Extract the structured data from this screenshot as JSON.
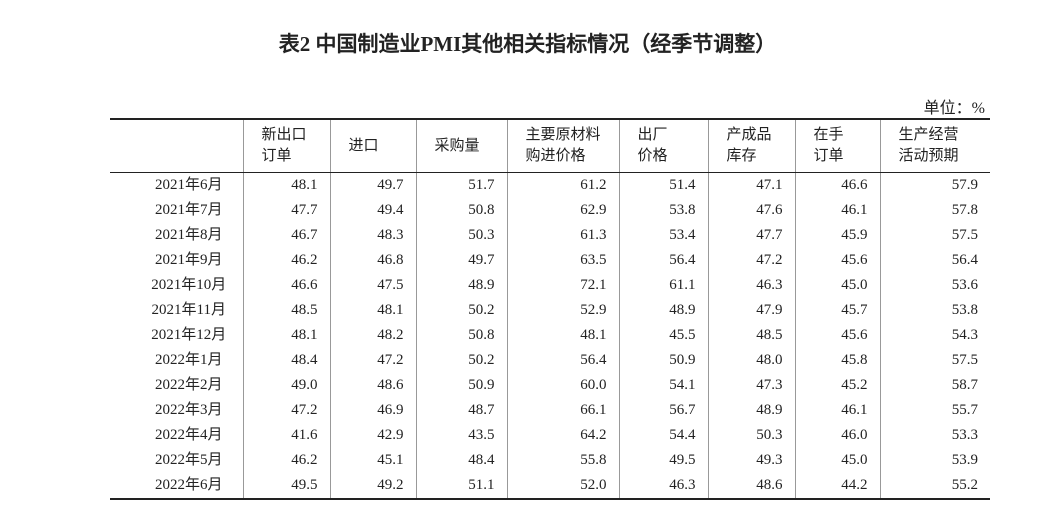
{
  "title": "表2 中国制造业PMI其他相关指标情况（经季节调整）",
  "unit": "单位：%",
  "table": {
    "headers": [
      [
        "新出口",
        "订单"
      ],
      [
        "进口"
      ],
      [
        "采购量"
      ],
      [
        "主要原材料",
        "购进价格"
      ],
      [
        "出厂",
        "价格"
      ],
      [
        "产成品",
        "库存"
      ],
      [
        "在手",
        "订单"
      ],
      [
        "生产经营",
        "活动预期"
      ]
    ],
    "rows": [
      [
        "2021年6月",
        "48.1",
        "49.7",
        "51.7",
        "61.2",
        "51.4",
        "47.1",
        "46.6",
        "57.9"
      ],
      [
        "2021年7月",
        "47.7",
        "49.4",
        "50.8",
        "62.9",
        "53.8",
        "47.6",
        "46.1",
        "57.8"
      ],
      [
        "2021年8月",
        "46.7",
        "48.3",
        "50.3",
        "61.3",
        "53.4",
        "47.7",
        "45.9",
        "57.5"
      ],
      [
        "2021年9月",
        "46.2",
        "46.8",
        "49.7",
        "63.5",
        "56.4",
        "47.2",
        "45.6",
        "56.4"
      ],
      [
        "2021年10月",
        "46.6",
        "47.5",
        "48.9",
        "72.1",
        "61.1",
        "46.3",
        "45.0",
        "53.6"
      ],
      [
        "2021年11月",
        "48.5",
        "48.1",
        "50.2",
        "52.9",
        "48.9",
        "47.9",
        "45.7",
        "53.8"
      ],
      [
        "2021年12月",
        "48.1",
        "48.2",
        "50.8",
        "48.1",
        "45.5",
        "48.5",
        "45.6",
        "54.3"
      ],
      [
        "2022年1月",
        "48.4",
        "47.2",
        "50.2",
        "56.4",
        "50.9",
        "48.0",
        "45.8",
        "57.5"
      ],
      [
        "2022年2月",
        "49.0",
        "48.6",
        "50.9",
        "60.0",
        "54.1",
        "47.3",
        "45.2",
        "58.7"
      ],
      [
        "2022年3月",
        "47.2",
        "46.9",
        "48.7",
        "66.1",
        "56.7",
        "48.9",
        "46.1",
        "55.7"
      ],
      [
        "2022年4月",
        "41.6",
        "42.9",
        "43.5",
        "64.2",
        "54.4",
        "50.3",
        "46.0",
        "53.3"
      ],
      [
        "2022年5月",
        "46.2",
        "45.1",
        "48.4",
        "55.8",
        "49.5",
        "49.3",
        "45.0",
        "53.9"
      ],
      [
        "2022年6月",
        "49.5",
        "49.2",
        "51.1",
        "52.0",
        "46.3",
        "48.6",
        "44.2",
        "55.2"
      ]
    ]
  }
}
